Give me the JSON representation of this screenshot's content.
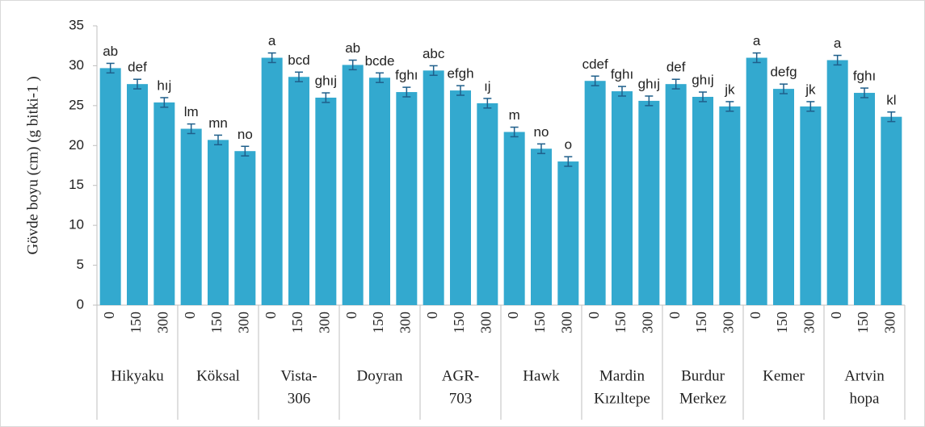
{
  "chart_data": {
    "type": "bar",
    "ylabel": "Gövde boyu (cm) (g bitki-1 )",
    "categories": [
      "0",
      "150",
      "300",
      "0",
      "150",
      "300",
      "0",
      "150",
      "300",
      "0",
      "150",
      "300",
      "0",
      "150",
      "300",
      "0",
      "150",
      "300",
      "0",
      "150",
      "300",
      "0",
      "150",
      "300",
      "0",
      "150",
      "300",
      "0",
      "150",
      "300"
    ],
    "groups": [
      [
        "Hikyaku"
      ],
      [
        "Köksal"
      ],
      [
        "Vista-",
        "306"
      ],
      [
        "Doyran"
      ],
      [
        "AGR-",
        "703"
      ],
      [
        "Hawk"
      ],
      [
        "Mardin",
        "Kızıltepe"
      ],
      [
        "Burdur",
        "Merkez"
      ],
      [
        "Kemer"
      ],
      [
        "Artvin",
        "hopa"
      ]
    ],
    "series": [
      {
        "color": "#33a9cf",
        "values": [
          29.7,
          27.7,
          25.4,
          22.1,
          20.7,
          19.3,
          31.0,
          28.6,
          26.0,
          30.1,
          28.5,
          26.7,
          29.4,
          26.9,
          25.3,
          21.7,
          19.6,
          18.0,
          28.1,
          26.8,
          25.6,
          27.7,
          26.1,
          24.9,
          31.0,
          27.1,
          24.9,
          30.7,
          26.6,
          23.6
        ],
        "errors": [
          0.6,
          0.6,
          0.6,
          0.6,
          0.6,
          0.6,
          0.6,
          0.6,
          0.6,
          0.6,
          0.6,
          0.6,
          0.6,
          0.6,
          0.6,
          0.6,
          0.6,
          0.6,
          0.6,
          0.6,
          0.6,
          0.6,
          0.6,
          0.6,
          0.6,
          0.6,
          0.6,
          0.6,
          0.6,
          0.6
        ],
        "letters": [
          "ab",
          "def",
          "hıj",
          "lm",
          "mn",
          "no",
          "a",
          "bcd",
          "ghıj",
          "ab",
          "bcde",
          "fghı",
          "abc",
          "efgh",
          "ıj",
          "m",
          "no",
          "o",
          "cdef",
          "fghı",
          "ghıj",
          "def",
          "ghıj",
          "jk",
          "a",
          "defg",
          "jk",
          "a",
          "fghı",
          "kl"
        ]
      }
    ],
    "ylim": [
      0,
      35
    ],
    "yticks": [
      0,
      5,
      10,
      15,
      20,
      25,
      30,
      35
    ]
  }
}
